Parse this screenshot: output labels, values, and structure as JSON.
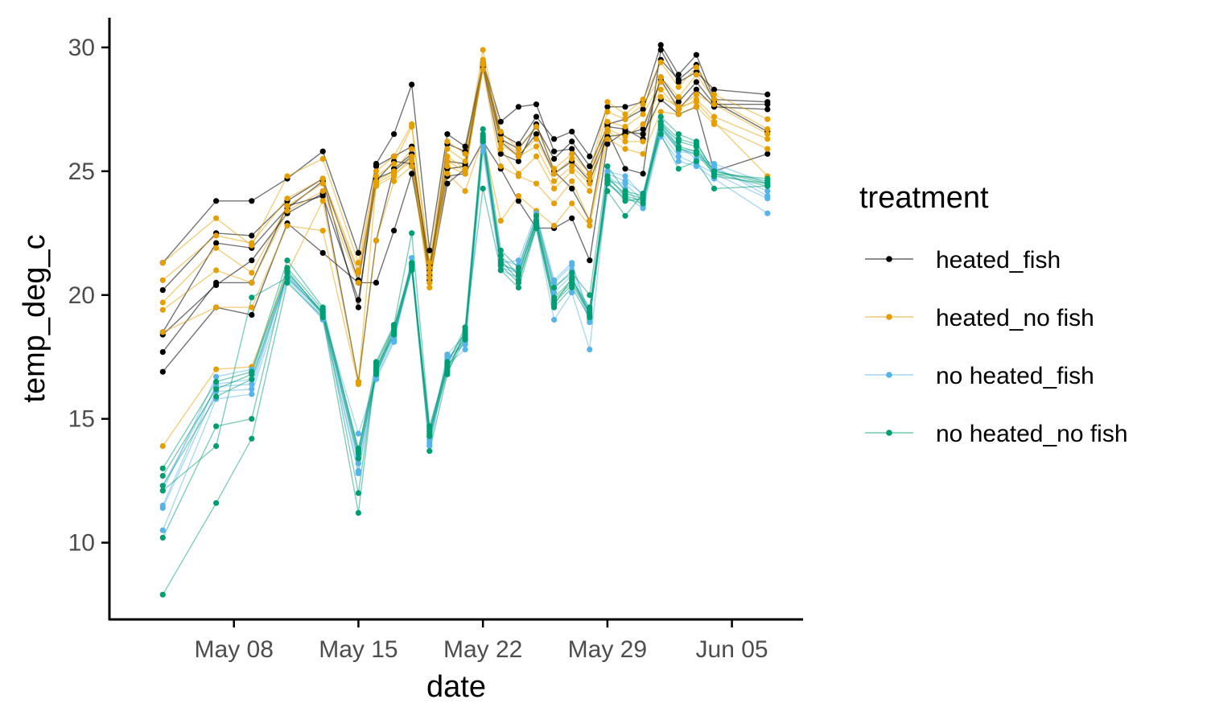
{
  "chart_data": {
    "type": "line",
    "title": "",
    "xlabel": "date",
    "ylabel": "temp_deg_c",
    "x_range": [
      "2025-05-01",
      "2025-06-09"
    ],
    "ylim": [
      6.9,
      31.2
    ],
    "grid": false,
    "legend_position": "right",
    "legend_title": "treatment",
    "x_ticks": [
      {
        "date": "2025-05-08",
        "label": "May 08"
      },
      {
        "date": "2025-05-15",
        "label": "May 15"
      },
      {
        "date": "2025-05-22",
        "label": "May 22"
      },
      {
        "date": "2025-05-29",
        "label": "May 29"
      },
      {
        "date": "2025-06-05",
        "label": "Jun 05"
      }
    ],
    "y_ticks": [
      {
        "value": 10,
        "label": "10"
      },
      {
        "value": 15,
        "label": "15"
      },
      {
        "value": 20,
        "label": "20"
      },
      {
        "value": 25,
        "label": "25"
      },
      {
        "value": 30,
        "label": "30"
      }
    ],
    "dates": [
      "2025-05-04",
      "2025-05-07",
      "2025-05-09",
      "2025-05-11",
      "2025-05-13",
      "2025-05-15",
      "2025-05-16",
      "2025-05-17",
      "2025-05-18",
      "2025-05-19",
      "2025-05-20",
      "2025-05-21",
      "2025-05-22",
      "2025-05-23",
      "2025-05-24",
      "2025-05-25",
      "2025-05-26",
      "2025-05-27",
      "2025-05-28",
      "2025-05-29",
      "2025-05-30",
      "2025-05-31",
      "2025-06-01",
      "2025-06-02",
      "2025-06-03",
      "2025-06-04",
      "2025-06-07"
    ],
    "series": [
      {
        "name": "heated_fish",
        "color": "#000000",
        "tanks": [
          [
            21.3,
            23.8,
            23.8,
            24.7,
            25.8,
            21.7,
            25.3,
            26.5,
            28.5,
            21.8,
            26.5,
            26.0,
            29.4,
            26.5,
            26.1,
            27.2,
            26.3,
            26.6,
            25.6,
            27.6,
            27.6,
            27.8,
            30.1,
            28.9,
            29.7,
            27.9,
            27.8
          ],
          [
            20.2,
            22.5,
            22.4,
            23.8,
            24.7,
            20.6,
            24.7,
            25.0,
            25.6,
            21.1,
            25.4,
            25.3,
            29.4,
            27.0,
            27.6,
            27.7,
            25.8,
            25.9,
            24.9,
            26.6,
            25.1,
            24.9,
            29.9,
            28.6,
            29.0,
            28.3,
            28.1
          ],
          [
            18.5,
            22.1,
            21.9,
            23.5,
            24.6,
            19.5,
            25.2,
            25.6,
            26.0,
            20.8,
            26.1,
            25.8,
            29.3,
            26.3,
            25.9,
            26.8,
            25.5,
            26.2,
            25.2,
            26.8,
            26.7,
            26.3,
            28.8,
            27.8,
            28.6,
            27.7,
            27.7
          ],
          [
            17.7,
            20.5,
            20.5,
            23.6,
            24.0,
            19.8,
            24.6,
            25.4,
            25.3,
            20.6,
            24.5,
            25.1,
            29.3,
            26.2,
            25.6,
            26.5,
            24.9,
            25.4,
            24.6,
            26.4,
            26.5,
            26.7,
            28.7,
            27.5,
            28.3,
            27.6,
            27.5
          ],
          [
            16.9,
            19.5,
            19.2,
            22.9,
            21.7,
            20.5,
            20.5,
            22.6,
            24.9,
            21.0,
            24.8,
            24.9,
            26.2,
            25.1,
            23.8,
            22.7,
            22.7,
            23.1,
            21.4,
            26.1,
            26.6,
            26.5,
            27.9,
            27.3,
            27.6,
            25.0,
            25.7
          ],
          [
            18.4,
            20.4,
            21.4,
            23.3,
            24.1,
            16.5,
            22.2,
            25.1,
            25.7,
            21.2,
            25.1,
            25.2,
            29.2,
            25.7,
            25.4,
            26.9,
            25.0,
            24.3,
            23.0,
            26.9,
            27.1,
            27.5,
            29.5,
            28.7,
            29.3,
            27.8,
            26.6
          ]
        ]
      },
      {
        "name": "heated_no fish",
        "color": "#e69f00",
        "tanks": [
          [
            21.3,
            23.1,
            22.0,
            24.8,
            25.5,
            21.3,
            25.0,
            25.6,
            26.9,
            21.3,
            26.2,
            25.7,
            29.9,
            26.6,
            25.9,
            26.8,
            25.1,
            25.7,
            24.9,
            27.8,
            27.3,
            27.9,
            29.4,
            28.4,
            29.2,
            28.1,
            27.1
          ],
          [
            20.6,
            22.4,
            22.1,
            23.9,
            24.7,
            21.0,
            24.8,
            25.3,
            26.8,
            21.1,
            25.9,
            25.4,
            29.5,
            26.3,
            25.7,
            26.3,
            24.9,
            25.5,
            24.7,
            27.4,
            27.1,
            27.7,
            28.8,
            28.0,
            28.9,
            27.9,
            26.7
          ],
          [
            19.7,
            21.9,
            20.9,
            23.6,
            24.5,
            20.9,
            24.6,
            25.0,
            25.9,
            20.9,
            25.6,
            25.1,
            29.4,
            26.1,
            25.6,
            26.0,
            24.6,
            25.2,
            24.5,
            27.0,
            26.8,
            27.3,
            28.6,
            27.6,
            28.1,
            27.7,
            26.5
          ],
          [
            19.4,
            21.0,
            20.5,
            23.4,
            24.2,
            20.5,
            24.4,
            24.8,
            25.6,
            20.7,
            25.2,
            24.9,
            29.3,
            25.9,
            24.9,
            25.6,
            24.3,
            25.0,
            24.2,
            26.7,
            26.4,
            26.9,
            28.3,
            27.5,
            27.9,
            27.2,
            26.3
          ],
          [
            18.5,
            19.5,
            19.5,
            22.8,
            22.6,
            16.4,
            22.2,
            24.6,
            25.2,
            20.3,
            24.9,
            24.2,
            26.3,
            23.0,
            24.0,
            23.4,
            22.8,
            23.7,
            22.8,
            26.3,
            25.9,
            25.7,
            27.4,
            27.3,
            27.6,
            26.9,
            25.9
          ],
          [
            13.9,
            17.0,
            17.1,
            20.9,
            23.8,
            16.5,
            24.5,
            24.9,
            25.4,
            20.5,
            25.4,
            25.0,
            29.1,
            25.2,
            24.8,
            24.5,
            23.7,
            24.6,
            23.0,
            26.6,
            26.2,
            26.2,
            28.0,
            27.6,
            27.8,
            27.0,
            24.8
          ]
        ]
      },
      {
        "name": "no heated_fish",
        "color": "#56b4e9",
        "tanks": [
          [
            12.1,
            16.7,
            17.0,
            20.8,
            19.2,
            14.4,
            16.6,
            18.1,
            21.5,
            14.3,
            17.6,
            18.4,
            26.4,
            21.3,
            21.4,
            23.3,
            20.6,
            21.3,
            19.1,
            25.0,
            24.8,
            24.0,
            27.0,
            26.0,
            25.5,
            25.3,
            24.5
          ],
          [
            11.5,
            16.4,
            16.6,
            20.7,
            19.1,
            12.9,
            16.9,
            18.3,
            21.1,
            14.0,
            17.3,
            18.1,
            26.2,
            21.2,
            21.0,
            23.0,
            20.3,
            21.0,
            19.0,
            24.6,
            24.5,
            23.8,
            26.8,
            25.8,
            25.7,
            25.1,
            24.2
          ],
          [
            11.4,
            16.1,
            16.2,
            20.9,
            19.3,
            13.2,
            17.0,
            18.5,
            21.3,
            14.2,
            17.5,
            18.0,
            26.0,
            21.1,
            20.9,
            22.9,
            20.1,
            20.8,
            18.9,
            24.8,
            24.3,
            23.6,
            26.6,
            25.6,
            25.3,
            24.9,
            23.9
          ],
          [
            10.5,
            15.8,
            16.0,
            20.6,
            19.0,
            12.8,
            16.7,
            18.2,
            21.0,
            13.9,
            17.2,
            17.8,
            25.8,
            21.0,
            20.7,
            22.7,
            19.0,
            20.1,
            17.8,
            24.5,
            24.0,
            23.5,
            26.4,
            25.4,
            25.2,
            24.7,
            23.3
          ],
          [
            12.3,
            16.3,
            16.4,
            20.8,
            19.2,
            13.5,
            16.8,
            18.4,
            21.2,
            14.1,
            17.4,
            18.2,
            26.1,
            21.4,
            21.2,
            23.1,
            20.5,
            21.2,
            19.2,
            24.9,
            24.6,
            24.1,
            26.9,
            25.9,
            25.8,
            25.2,
            24.0
          ]
        ]
      },
      {
        "name": "no heated_no fish",
        "color": "#009e73",
        "tanks": [
          [
            13.0,
            16.5,
            16.9,
            21.4,
            19.5,
            13.7,
            17.3,
            18.8,
            22.5,
            14.7,
            17.2,
            18.7,
            26.7,
            21.8,
            21.1,
            23.2,
            20.3,
            20.9,
            20.0,
            25.2,
            24.2,
            24.0,
            27.2,
            26.5,
            26.2,
            24.9,
            24.7
          ],
          [
            12.7,
            16.2,
            16.8,
            21.1,
            19.4,
            13.6,
            17.0,
            18.7,
            21.3,
            14.5,
            17.3,
            18.5,
            26.5,
            21.6,
            20.8,
            23.0,
            19.9,
            20.6,
            19.5,
            24.8,
            24.0,
            23.8,
            27.0,
            26.3,
            26.1,
            25.0,
            24.6
          ],
          [
            12.3,
            15.9,
            16.6,
            20.9,
            19.3,
            13.8,
            16.9,
            18.6,
            21.2,
            14.4,
            17.0,
            18.4,
            26.3,
            21.4,
            20.6,
            22.8,
            19.7,
            20.4,
            19.3,
            24.6,
            23.8,
            23.9,
            26.8,
            26.0,
            25.8,
            25.0,
            24.5
          ],
          [
            10.2,
            14.7,
            15.0,
            21.0,
            19.2,
            13.4,
            16.8,
            18.5,
            21.1,
            14.3,
            16.9,
            18.2,
            26.2,
            21.2,
            20.5,
            22.9,
            19.5,
            20.3,
            19.1,
            24.5,
            23.9,
            23.7,
            26.7,
            25.9,
            25.7,
            24.9,
            24.4
          ],
          [
            7.9,
            11.6,
            14.2,
            20.5,
            19.1,
            11.2,
            17.2,
            18.7,
            21.2,
            13.7,
            16.8,
            18.6,
            24.3,
            21.0,
            20.3,
            22.7,
            19.6,
            20.7,
            19.2,
            24.2,
            23.2,
            24.1,
            26.5,
            25.1,
            25.4,
            24.3,
            24.4
          ],
          [
            12.1,
            13.9,
            19.9,
            20.7,
            19.3,
            12.0,
            17.1,
            18.4,
            21.0,
            14.6,
            17.1,
            18.3,
            26.4,
            21.3,
            20.9,
            23.0,
            19.8,
            20.5,
            19.4,
            24.7,
            24.1,
            23.9,
            26.9,
            26.2,
            26.0,
            24.8,
            24.5
          ]
        ]
      }
    ]
  }
}
